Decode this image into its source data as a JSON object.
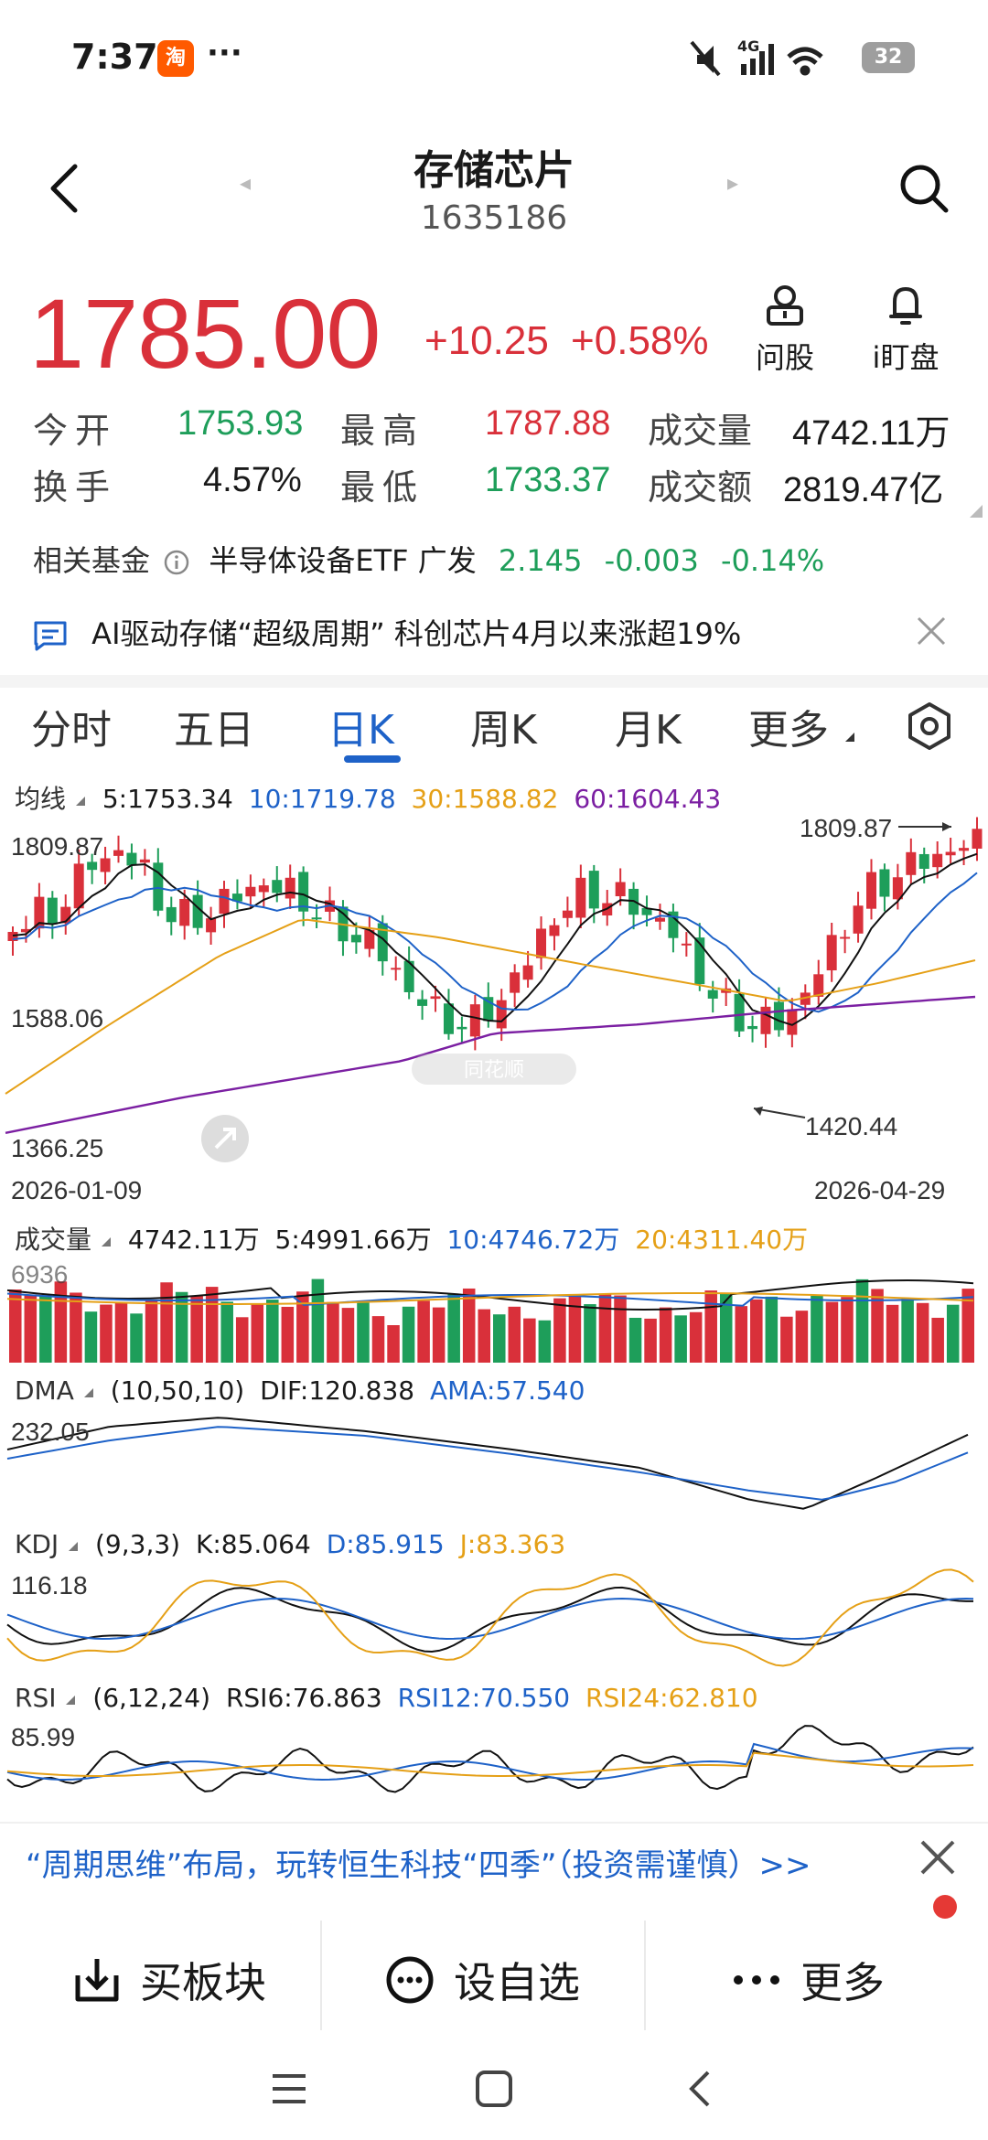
{
  "status_bar": {
    "time": "7:37",
    "app_icon": "淘",
    "dots": "···",
    "battery": "32"
  },
  "header": {
    "title": "存储芯片",
    "code": "1635186",
    "prev_arrow": "◂",
    "next_arrow": "▸"
  },
  "price": {
    "last": "1785.00",
    "change": "+10.25",
    "change_pct": "+0.58%",
    "ask_label": "问股",
    "watch_label": "i盯盘"
  },
  "stats": {
    "open_label": "今开",
    "open": "1753.93",
    "high_label": "最高",
    "high": "1787.88",
    "volume_label": "成交量",
    "volume": "4742.11万",
    "turnover_label": "换手",
    "turnover": "4.57%",
    "low_label": "最低",
    "low": "1733.37",
    "amount_label": "成交额",
    "amount": "2819.47亿"
  },
  "fund": {
    "label": "相关基金",
    "name": "半导体设备ETF 广发",
    "price": "2.145",
    "change": "-0.003",
    "change_pct": "-0.14%"
  },
  "news": {
    "text": "AI驱动存储“超级周期” 科创芯片4月以来涨超19%"
  },
  "tabs": [
    {
      "label": "分时"
    },
    {
      "label": "五日"
    },
    {
      "label": "日K"
    },
    {
      "label": "周K"
    },
    {
      "label": "月K"
    },
    {
      "label": "更多"
    }
  ],
  "ma": {
    "title": "均线",
    "ma5": "5:1753.34",
    "ma10": "10:1719.78",
    "ma30": "30:1588.82",
    "ma60": "60:1604.43"
  },
  "kline": {
    "y_top": "1809.87",
    "y_mid": "1588.06",
    "y_bottom": "1366.25",
    "date_start": "2026-01-09",
    "date_end": "2026-04-29",
    "max_marker": "1809.87",
    "min_marker": "1420.44",
    "watermark": "同花顺"
  },
  "volume": {
    "title": "成交量",
    "value": "4742.11万",
    "ma5": "5:4991.66万",
    "ma10": "10:4746.72万",
    "ma20": "20:4311.40万",
    "y_top": "6936"
  },
  "dma": {
    "title": "DMA",
    "params": "(10,50,10)",
    "dif": "DIF:120.838",
    "ama": "AMA:57.540",
    "y_top": "232.05"
  },
  "kdj": {
    "title": "KDJ",
    "params": "(9,3,3)",
    "k": "K:85.064",
    "d": "D:85.915",
    "j": "J:83.363",
    "y_top": "116.18"
  },
  "rsi": {
    "title": "RSI",
    "params": "(6,12,24)",
    "rsi6": "RSI6:76.863",
    "rsi12": "RSI12:70.550",
    "rsi24": "RSI24:62.810",
    "y_top": "85.99"
  },
  "promo": {
    "text": "“周期思维”布局，玩转恒生科技“四季”（投资需谨慎）>>"
  },
  "bottom": {
    "buy_label": "买板块",
    "add_label": "设自选",
    "more_label": "更多"
  },
  "colors": {
    "up": "#d9303a",
    "down": "#1e9e5a",
    "accent": "#1e62c8",
    "ma5": "#111111",
    "ma10": "#1e62c8",
    "ma30": "#e5a017",
    "ma60": "#7b1fa2"
  }
}
